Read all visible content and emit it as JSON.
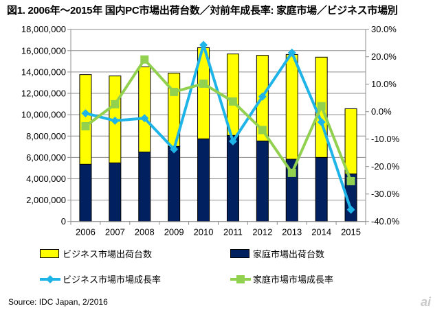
{
  "title": "図1. 2006年～2015年 国内PC市場出荷台数／対前年成長率: 家庭市場／ビジネス市場別",
  "source": "Source: IDC Japan, 2/2016",
  "logo": "ai",
  "chart_data": {
    "type": "bar",
    "stacked": true,
    "categories": [
      "2006",
      "2007",
      "2008",
      "2009",
      "2010",
      "2011",
      "2012",
      "2013",
      "2014",
      "2015"
    ],
    "y_left": {
      "min": 0,
      "max": 18000000,
      "step": 2000000,
      "tick_labels": [
        "0",
        "2,000,000",
        "4,000,000",
        "6,000,000",
        "8,000,000",
        "10,000,000",
        "12,000,000",
        "14,000,000",
        "16,000,000",
        "18,000,000"
      ]
    },
    "y_right": {
      "min": -40,
      "max": 30,
      "step": 10,
      "tick_labels": [
        "-40.0%",
        "-30.0%",
        "-20.0%",
        "-10.0%",
        "0.0%",
        "10.0%",
        "20.0%",
        "30.0%"
      ]
    },
    "grid": true,
    "legend_placement": "bottom",
    "series": [
      {
        "name": "家庭市場出荷台数",
        "kind": "bar",
        "axis": "left",
        "color": "#002060",
        "values": [
          5360000,
          5490000,
          6510000,
          7030000,
          7740000,
          8060000,
          7540000,
          5830000,
          6000000,
          4460000
        ]
      },
      {
        "name": "ビジネス市場出荷台数",
        "kind": "bar",
        "axis": "left",
        "color": "#ffff00",
        "values": [
          8400000,
          8140000,
          7980000,
          6860000,
          8540000,
          7630000,
          8020000,
          9810000,
          9390000,
          6100000
        ]
      },
      {
        "name": "ビジネス市場市場成長率",
        "kind": "line",
        "axis": "right",
        "color": "#1fb4e8",
        "marker": "diamond",
        "values": [
          -0.6,
          -3.3,
          -2.4,
          -13.7,
          24.3,
          -10.8,
          5.5,
          21.5,
          -3.8,
          -35.7
        ]
      },
      {
        "name": "家庭市場市場成長率",
        "kind": "line",
        "axis": "right",
        "color": "#92d050",
        "marker": "square",
        "values": [
          -5.3,
          2.7,
          19.0,
          7.2,
          10.2,
          3.7,
          -6.7,
          -22.3,
          2.0,
          -25.3
        ]
      }
    ]
  }
}
